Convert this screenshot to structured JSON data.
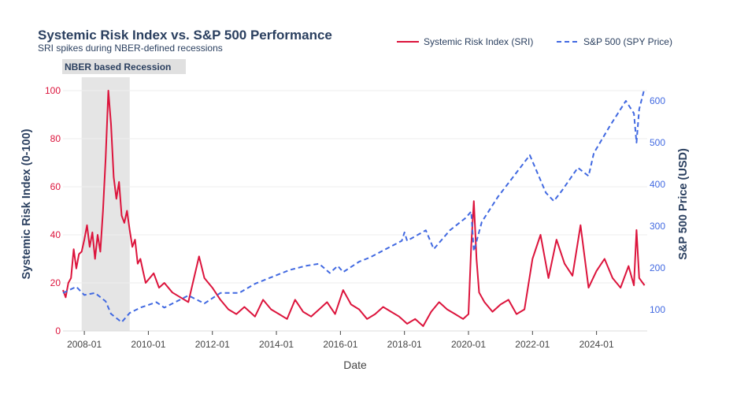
{
  "chart_data": {
    "type": "line",
    "title": "Systemic Risk Index vs. S&P 500 Performance",
    "subtitle": "SRI spikes during NBER-defined recessions",
    "xlabel": "Date",
    "ylabel_left": "Systemic Risk Index (0-100)",
    "ylabel_right": "S&P 500 Price (USD)",
    "x_ticks": [
      "2008-01",
      "2010-01",
      "2012-01",
      "2014-01",
      "2016-01",
      "2018-01",
      "2020-01",
      "2022-01",
      "2024-01"
    ],
    "y_left_ticks": [
      "0",
      "20",
      "40",
      "60",
      "80",
      "100"
    ],
    "y_right_ticks": [
      "100",
      "200",
      "300",
      "400",
      "500",
      "600"
    ],
    "ylim_left": [
      0,
      100
    ],
    "ylim_right": [
      40,
      630
    ],
    "xlim": [
      "2007-05",
      "2025-08"
    ],
    "grid": true,
    "legend_position": "top-right",
    "shaded_region": {
      "label": "NBER based Recession",
      "start": "2007-12",
      "end": "2009-06",
      "color": "#e5e5e5"
    },
    "colors": {
      "sri": "#dc143c",
      "spy": "#4169e1",
      "left_axis": "#dc143c",
      "right_axis": "#4169e1"
    },
    "series": [
      {
        "name": "Systemic Risk Index (SRI)",
        "axis": "left",
        "style": "solid",
        "x": [
          "2007-05",
          "2007-06",
          "2007-07",
          "2007-08",
          "2007-09",
          "2007-10",
          "2007-11",
          "2007-12",
          "2008-01",
          "2008-02",
          "2008-03",
          "2008-04",
          "2008-05",
          "2008-06",
          "2008-07",
          "2008-08",
          "2008-09",
          "2008-10",
          "2008-11",
          "2008-12",
          "2009-01",
          "2009-02",
          "2009-03",
          "2009-04",
          "2009-05",
          "2009-06",
          "2009-07",
          "2009-08",
          "2009-09",
          "2009-10",
          "2009-11",
          "2009-12",
          "2010-03",
          "2010-05",
          "2010-07",
          "2010-10",
          "2011-01",
          "2011-04",
          "2011-08",
          "2011-10",
          "2012-01",
          "2012-04",
          "2012-07",
          "2012-10",
          "2013-01",
          "2013-05",
          "2013-08",
          "2013-11",
          "2014-02",
          "2014-05",
          "2014-08",
          "2014-11",
          "2015-02",
          "2015-05",
          "2015-08",
          "2015-11",
          "2016-02",
          "2016-05",
          "2016-08",
          "2016-11",
          "2017-02",
          "2017-05",
          "2017-08",
          "2017-11",
          "2018-02",
          "2018-05",
          "2018-08",
          "2018-11",
          "2019-02",
          "2019-05",
          "2019-08",
          "2019-11",
          "2020-01",
          "2020-02",
          "2020-03",
          "2020-04",
          "2020-05",
          "2020-07",
          "2020-10",
          "2021-01",
          "2021-04",
          "2021-07",
          "2021-10",
          "2022-01",
          "2022-04",
          "2022-07",
          "2022-10",
          "2023-01",
          "2023-04",
          "2023-07",
          "2023-10",
          "2024-01",
          "2024-04",
          "2024-07",
          "2024-10",
          "2025-01",
          "2025-03",
          "2025-04",
          "2025-05",
          "2025-07"
        ],
        "values": [
          17,
          14,
          20,
          22,
          34,
          26,
          32,
          33,
          38,
          44,
          35,
          41,
          30,
          40,
          33,
          50,
          72,
          100,
          86,
          64,
          55,
          62,
          48,
          45,
          50,
          42,
          35,
          38,
          28,
          30,
          25,
          20,
          24,
          18,
          20,
          16,
          14,
          12,
          31,
          22,
          18,
          13,
          9,
          7,
          10,
          6,
          13,
          9,
          7,
          5,
          13,
          8,
          6,
          9,
          12,
          7,
          17,
          11,
          9,
          5,
          7,
          10,
          8,
          6,
          3,
          5,
          2,
          8,
          12,
          9,
          7,
          5,
          7,
          35,
          54,
          30,
          16,
          12,
          8,
          11,
          13,
          7,
          9,
          30,
          40,
          22,
          38,
          28,
          23,
          44,
          18,
          25,
          30,
          22,
          18,
          27,
          19,
          42,
          22,
          19
        ]
      },
      {
        "name": "S&P 500 (SPY Price)",
        "axis": "right",
        "style": "dashed",
        "x": [
          "2007-05",
          "2007-10",
          "2008-01",
          "2008-05",
          "2008-09",
          "2008-11",
          "2009-03",
          "2009-06",
          "2009-10",
          "2010-04",
          "2010-07",
          "2011-04",
          "2011-10",
          "2012-04",
          "2012-11",
          "2013-05",
          "2013-12",
          "2014-06",
          "2014-12",
          "2015-05",
          "2015-09",
          "2015-12",
          "2016-02",
          "2016-08",
          "2016-12",
          "2017-06",
          "2017-12",
          "2018-01",
          "2018-02",
          "2018-09",
          "2018-12",
          "2019-06",
          "2019-12",
          "2020-02",
          "2020-03",
          "2020-06",
          "2020-12",
          "2021-06",
          "2021-12",
          "2022-06",
          "2022-09",
          "2022-12",
          "2023-06",
          "2023-10",
          "2023-12",
          "2024-06",
          "2024-12",
          "2025-03",
          "2025-04",
          "2025-05",
          "2025-07"
        ],
        "values": [
          140,
          155,
          135,
          140,
          120,
          90,
          70,
          92,
          105,
          118,
          105,
          134,
          115,
          140,
          140,
          162,
          180,
          195,
          205,
          210,
          188,
          205,
          190,
          215,
          225,
          245,
          265,
          285,
          265,
          290,
          245,
          290,
          320,
          335,
          240,
          310,
          370,
          420,
          470,
          380,
          360,
          385,
          440,
          420,
          475,
          540,
          600,
          570,
          500,
          580,
          630
        ]
      }
    ]
  }
}
